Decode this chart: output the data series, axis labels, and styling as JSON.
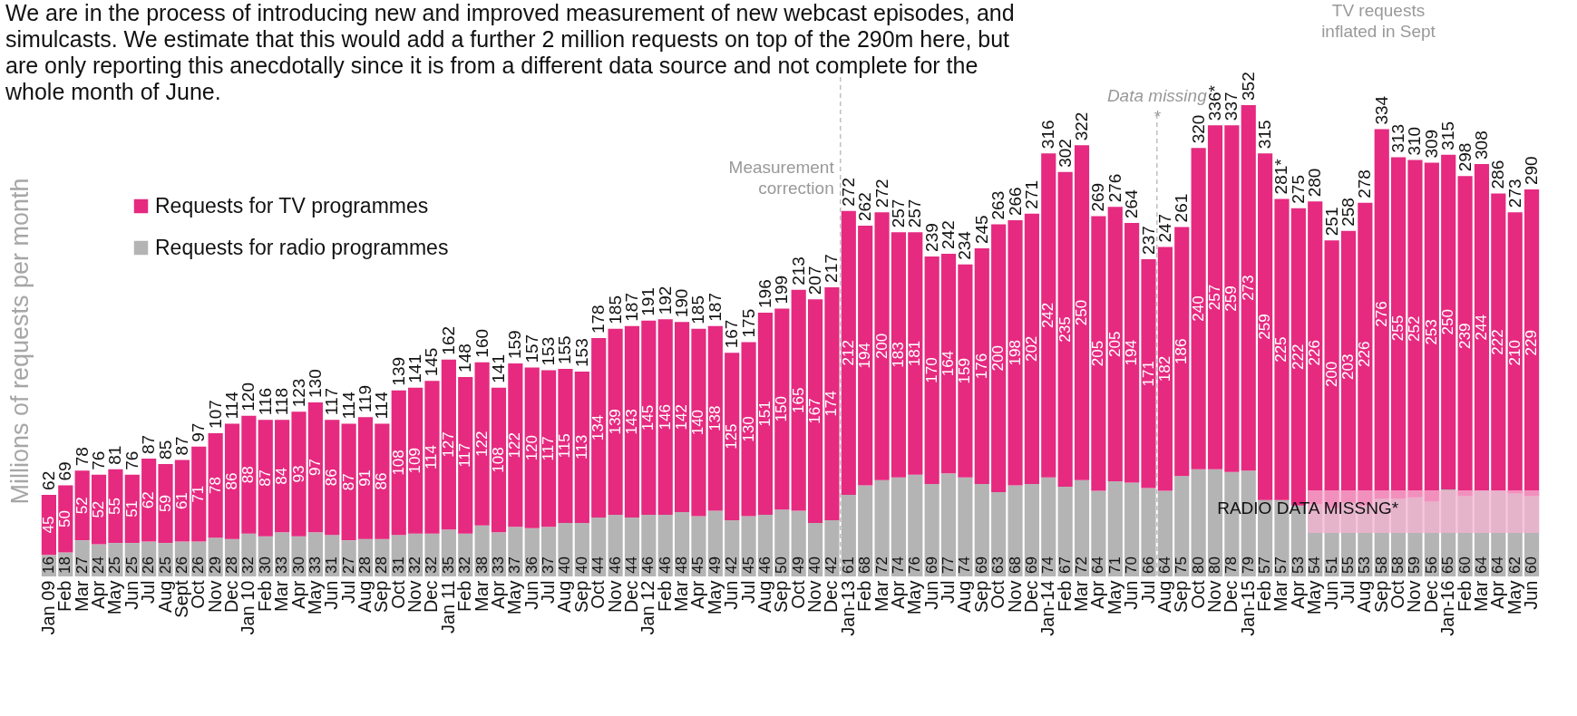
{
  "chart_data": {
    "type": "bar",
    "stacked": true,
    "data_labels": true,
    "legend": "top left",
    "tick_labels": "x",
    "ylabel": "Millions of requests per month",
    "xlim": [
      "2009-01",
      "2016-06"
    ],
    "x": [
      "2009-01",
      "2009-02",
      "2009-03",
      "2009-04",
      "2009-05",
      "2009-06",
      "2009-07",
      "2009-08",
      "2009-09",
      "2009-10",
      "2009-11",
      "2009-12",
      "2010-01",
      "2010-02",
      "2010-03",
      "2010-04",
      "2010-05",
      "2010-06",
      "2010-07",
      "2010-08",
      "2010-09",
      "2010-10",
      "2010-11",
      "2010-12",
      "2011-01",
      "2011-02",
      "2011-03",
      "2011-04",
      "2011-05",
      "2011-06",
      "2011-07",
      "2011-08",
      "2011-09",
      "2011-10",
      "2011-11",
      "2011-12",
      "2012-01",
      "2012-02",
      "2012-03",
      "2012-04",
      "2012-05",
      "2012-06",
      "2012-07",
      "2012-08",
      "2012-09",
      "2012-10",
      "2012-11",
      "2012-12",
      "2013-01",
      "2013-02",
      "2013-03",
      "2013-04",
      "2013-05",
      "2013-06",
      "2013-07",
      "2013-08",
      "2013-09",
      "2013-10",
      "2013-11",
      "2013-12",
      "2014-01",
      "2014-02",
      "2014-03",
      "2014-04",
      "2014-05",
      "2014-06",
      "2014-07",
      "2014-08",
      "2014-09",
      "2014-10",
      "2014-11",
      "2014-12",
      "2015-01",
      "2015-02",
      "2015-03",
      "2015-04",
      "2015-05",
      "2015-06",
      "2015-07",
      "2015-08",
      "2015-09",
      "2015-10",
      "2015-11",
      "2015-12",
      "2016-01",
      "2016-02",
      "2016-03",
      "2016-04",
      "2016-05",
      "2016-06"
    ],
    "xticks": [
      {
        "value": "2009-01",
        "label": "Jan 09"
      },
      {
        "value": "2009-02",
        "label": "Feb"
      },
      {
        "value": "2009-03",
        "label": "Mar"
      },
      {
        "value": "2009-04",
        "label": "Apr"
      },
      {
        "value": "2009-05",
        "label": "May"
      },
      {
        "value": "2009-06",
        "label": "Jun"
      },
      {
        "value": "2009-07",
        "label": "Jul"
      },
      {
        "value": "2009-08",
        "label": "Aug"
      },
      {
        "value": "2009-09",
        "label": "Sept"
      },
      {
        "value": "2009-10",
        "label": "Oct"
      },
      {
        "value": "2009-11",
        "label": "Nov"
      },
      {
        "value": "2009-12",
        "label": "Dec"
      },
      {
        "value": "2010-01",
        "label": "Jan 10"
      },
      {
        "value": "2010-02",
        "label": "Feb"
      },
      {
        "value": "2010-03",
        "label": "Mar"
      },
      {
        "value": "2010-04",
        "label": "Apr"
      },
      {
        "value": "2010-05",
        "label": "May"
      },
      {
        "value": "2010-06",
        "label": "Jun"
      },
      {
        "value": "2010-07",
        "label": "Jul"
      },
      {
        "value": "2010-08",
        "label": "Aug"
      },
      {
        "value": "2010-09",
        "label": "Sep"
      },
      {
        "value": "2010-10",
        "label": "Oct"
      },
      {
        "value": "2010-11",
        "label": "Nov"
      },
      {
        "value": "2010-12",
        "label": "Dec"
      },
      {
        "value": "2011-01",
        "label": "Jan 11"
      },
      {
        "value": "2011-02",
        "label": "Feb"
      },
      {
        "value": "2011-03",
        "label": "Mar"
      },
      {
        "value": "2011-04",
        "label": "Apr"
      },
      {
        "value": "2011-05",
        "label": "May"
      },
      {
        "value": "2011-06",
        "label": "Jun"
      },
      {
        "value": "2011-07",
        "label": "Jul"
      },
      {
        "value": "2011-08",
        "label": "Aug"
      },
      {
        "value": "2011-09",
        "label": "Sep"
      },
      {
        "value": "2011-10",
        "label": "Oct"
      },
      {
        "value": "2011-11",
        "label": "Nov"
      },
      {
        "value": "2011-12",
        "label": "Dec"
      },
      {
        "value": "2012-01",
        "label": "Jan 12"
      },
      {
        "value": "2012-02",
        "label": "Feb"
      },
      {
        "value": "2012-03",
        "label": "Mar"
      },
      {
        "value": "2012-04",
        "label": "Apr"
      },
      {
        "value": "2012-05",
        "label": "May"
      },
      {
        "value": "2012-06",
        "label": "Jun"
      },
      {
        "value": "2012-07",
        "label": "Jul"
      },
      {
        "value": "2012-08",
        "label": "Aug"
      },
      {
        "value": "2012-09",
        "label": "Sep"
      },
      {
        "value": "2012-10",
        "label": "Oct"
      },
      {
        "value": "2012-11",
        "label": "Nov"
      },
      {
        "value": "2012-12",
        "label": "Dec"
      },
      {
        "value": "2013-01",
        "label": "Jan-13"
      },
      {
        "value": "2013-02",
        "label": "Feb"
      },
      {
        "value": "2013-03",
        "label": "Mar"
      },
      {
        "value": "2013-04",
        "label": "Apr"
      },
      {
        "value": "2013-05",
        "label": "May"
      },
      {
        "value": "2013-06",
        "label": "Jun"
      },
      {
        "value": "2013-07",
        "label": "Jul"
      },
      {
        "value": "2013-08",
        "label": "Aug"
      },
      {
        "value": "2013-09",
        "label": "Sep"
      },
      {
        "value": "2013-10",
        "label": "Oct"
      },
      {
        "value": "2013-11",
        "label": "Nov"
      },
      {
        "value": "2013-12",
        "label": "Dec"
      },
      {
        "value": "2014-01",
        "label": "Jan-14"
      },
      {
        "value": "2014-02",
        "label": "Feb"
      },
      {
        "value": "2014-03",
        "label": "Mar"
      },
      {
        "value": "2014-04",
        "label": "Apr"
      },
      {
        "value": "2014-05",
        "label": "May"
      },
      {
        "value": "2014-06",
        "label": "Jun"
      },
      {
        "value": "2014-07",
        "label": "Jul"
      },
      {
        "value": "2014-08",
        "label": "Aug"
      },
      {
        "value": "2014-09",
        "label": "Sep"
      },
      {
        "value": "2014-10",
        "label": "Oct"
      },
      {
        "value": "2014-11",
        "label": "Nov"
      },
      {
        "value": "2014-12",
        "label": "Dec"
      },
      {
        "value": "2015-01",
        "label": "Jan-15"
      },
      {
        "value": "2015-02",
        "label": "Feb"
      },
      {
        "value": "2015-03",
        "label": "Mar"
      },
      {
        "value": "2015-04",
        "label": "Apr"
      },
      {
        "value": "2015-05",
        "label": "May"
      },
      {
        "value": "2015-06",
        "label": "Jun"
      },
      {
        "value": "2015-07",
        "label": "Jul"
      },
      {
        "value": "2015-08",
        "label": "Aug"
      },
      {
        "value": "2015-09",
        "label": "Sep"
      },
      {
        "value": "2015-10",
        "label": "Oct"
      },
      {
        "value": "2015-11",
        "label": "Nov"
      },
      {
        "value": "2015-12",
        "label": "Dec"
      },
      {
        "value": "2016-01",
        "label": "Jan-16"
      },
      {
        "value": "2016-02",
        "label": "Feb"
      },
      {
        "value": "2016-03",
        "label": "Mar"
      },
      {
        "value": "2016-04",
        "label": "Apr"
      },
      {
        "value": "2016-05",
        "label": "May"
      },
      {
        "value": "2016-06",
        "label": "Jun"
      }
    ],
    "series": [
      {
        "name": "Requests for radio programmes",
        "color": "#b4b4b4",
        "values": [
          16,
          18,
          27,
          24,
          25,
          25,
          26,
          25,
          26,
          26,
          29,
          28,
          32,
          30,
          33,
          30,
          33,
          31,
          27,
          28,
          28,
          31,
          32,
          32,
          35,
          32,
          38,
          33,
          37,
          36,
          37,
          40,
          40,
          44,
          46,
          44,
          46,
          46,
          48,
          45,
          49,
          42,
          45,
          46,
          50,
          49,
          40,
          42,
          61,
          68,
          72,
          74,
          76,
          69,
          77,
          74,
          69,
          63,
          68,
          69,
          74,
          67,
          72,
          64,
          71,
          70,
          66,
          64,
          75,
          80,
          80,
          78,
          79,
          57,
          57,
          53,
          54,
          51,
          55,
          53,
          58,
          58,
          59,
          56,
          65,
          60,
          64,
          64,
          62,
          60
        ]
      },
      {
        "name": "Requests for TV programmes",
        "color": "#e52a80",
        "values": [
          45,
          50,
          52,
          52,
          55,
          51,
          62,
          59,
          61,
          71,
          78,
          86,
          88,
          87,
          84,
          93,
          97,
          86,
          87,
          91,
          86,
          108,
          109,
          114,
          127,
          117,
          122,
          108,
          122,
          120,
          117,
          115,
          113,
          134,
          139,
          143,
          145,
          146,
          142,
          140,
          138,
          125,
          130,
          151,
          150,
          165,
          167,
          174,
          212,
          194,
          200,
          183,
          181,
          170,
          164,
          159,
          176,
          200,
          198,
          202,
          242,
          235,
          250,
          205,
          205,
          194,
          171,
          182,
          186,
          240,
          257,
          259,
          273,
          259,
          225,
          222,
          226,
          200,
          203,
          226,
          276,
          255,
          252,
          253,
          250,
          239,
          244,
          222,
          210,
          229
        ]
      }
    ],
    "totals": [
      "62",
      "69",
      "78",
      "76",
      "81",
      "76",
      "87",
      "85",
      "87",
      "97",
      "107",
      "114",
      "120",
      "116",
      "118",
      "123",
      "130",
      "117",
      "114",
      "119",
      "114",
      "139",
      "141",
      "145",
      "162",
      "148",
      "160",
      "141",
      "159",
      "157",
      "153",
      "155",
      "153",
      "178",
      "185",
      "187",
      "191",
      "192",
      "190",
      "185",
      "187",
      "167",
      "175",
      "196",
      "199",
      "213",
      "207",
      "217",
      "272",
      "262",
      "272",
      "257",
      "257",
      "239",
      "242",
      "234",
      "245",
      "263",
      "266",
      "271",
      "316",
      "302",
      "322",
      "269",
      "276",
      "264",
      "237",
      "247",
      "261",
      "320",
      "336*",
      "337",
      "352",
      "315",
      "281*",
      "275",
      "280",
      "251",
      "258",
      "278",
      "334",
      "313",
      "310",
      "309",
      "315",
      "298",
      "308",
      "286",
      "273",
      "290"
    ],
    "ref_lines": [
      {
        "axis": "x",
        "value": "2013-01",
        "label": "Measurement correction",
        "color": "#bfbfbf",
        "line_style": "dashed"
      },
      {
        "axis": "x",
        "value": "2014-08",
        "label": "Data missing *",
        "color": "#bfbfbf",
        "line_style": "dashed"
      }
    ],
    "bands": [
      {
        "axis": "x",
        "from": "2015-05",
        "to": "2016-06",
        "label": "RADIO DATA MISSNG*",
        "color": "#f5b3d1"
      }
    ],
    "annotations": [
      "We are in the process of introducing new and improved measurement of new webcast episodes, and simulcasts.  We estimate that this would add a further 2 million requests on top of the 290m here, but are only reporting this anecdotally since it is from a different data source and not complete for the whole month of June.",
      "TV requests inflated in Sept"
    ]
  }
}
